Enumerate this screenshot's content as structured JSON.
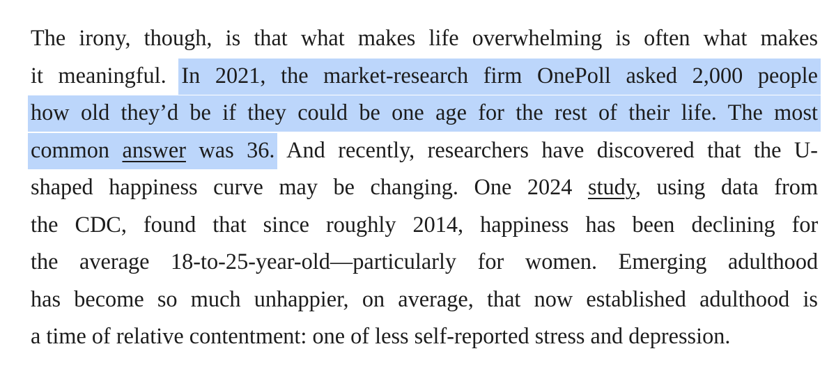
{
  "article": {
    "line1": "The irony, though, is that what makes life overwhelming is often what makes",
    "line2_before": "it meaningful. ",
    "line2_highlight": "In 2021, the market-research firm OnePoll asked 2,000 people",
    "line3_highlight": "how old they’d be if they could be one age for the rest of their life. The most",
    "line4_highlight_before": "common ",
    "link_answer": "answer",
    "line4_highlight_after": " was 36.",
    "line4_after": " And recently, researchers have discovered that the U-",
    "line5_before": "shaped happiness curve may be changing. One 2024 ",
    "link_study": "study",
    "line5_after": ", using data from",
    "line6": "the CDC, found that since roughly 2014, happiness has been declining for",
    "line7": "the average 18-to-25-year-old—particularly for women. Emerging adulthood",
    "line8": "has become so much unhappier, on average, that now established adulthood is",
    "line9": "a time of relative contentment: one of less self-reported stress and depression."
  },
  "colors": {
    "text": "#1c1c1c",
    "selection_highlight": "#bcd6fb",
    "background": "#ffffff"
  }
}
